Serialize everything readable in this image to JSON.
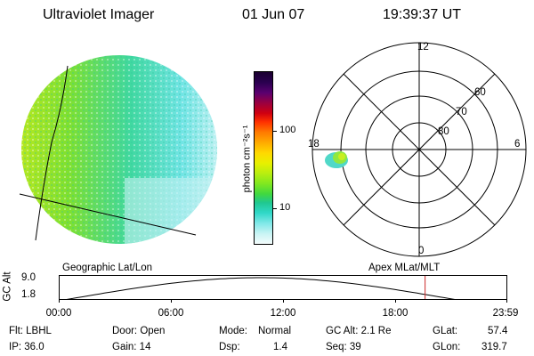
{
  "header": {
    "instrument": "Ultraviolet Imager",
    "date": "01 Jun 07",
    "time": "19:39:37 UT"
  },
  "left_panel": {
    "label": "Geographic Lat/Lon"
  },
  "colorbar": {
    "unit": "photon cm⁻²s⁻¹",
    "ticks": [
      "100",
      "10"
    ],
    "colors": [
      "#1a0030",
      "#2a0050",
      "#5a0070",
      "#9a0040",
      "#d00010",
      "#ff3000",
      "#ff7a00",
      "#ffaa00",
      "#ffd800",
      "#e8f000",
      "#b8ee10",
      "#80e820",
      "#40d840",
      "#20c890",
      "#30d8c8",
      "#80e8e8",
      "#c8f4f4",
      "#f4fcfc"
    ]
  },
  "right_panel": {
    "label": "Apex MLat/MLT",
    "mlt_labels": {
      "top": "12",
      "left": "18",
      "right": "6",
      "bottom": "0"
    },
    "lat_labels": [
      "60",
      "70",
      "80"
    ]
  },
  "timeline": {
    "ylabel": "GC Alt",
    "ticks": [
      "9.0",
      "1.8"
    ],
    "xticks": [
      "00:00",
      "06:00",
      "12:00",
      "18:00",
      "23:59"
    ],
    "marker_fraction": 0.818
  },
  "footer": {
    "col1": [
      "Flt: LBHL",
      "IP: 36.0"
    ],
    "col2": [
      "Door: Open",
      "Gain: 14"
    ],
    "col3_labels": [
      "Mode:",
      "Dsp:"
    ],
    "col3_values": [
      "Normal",
      "1.4"
    ],
    "col4": [
      "GC Alt: 2.1 Re",
      "Seq: 39"
    ],
    "col5_labels": [
      "GLat:",
      "GLon:"
    ],
    "col5_values": [
      "57.4",
      "319.7"
    ]
  }
}
